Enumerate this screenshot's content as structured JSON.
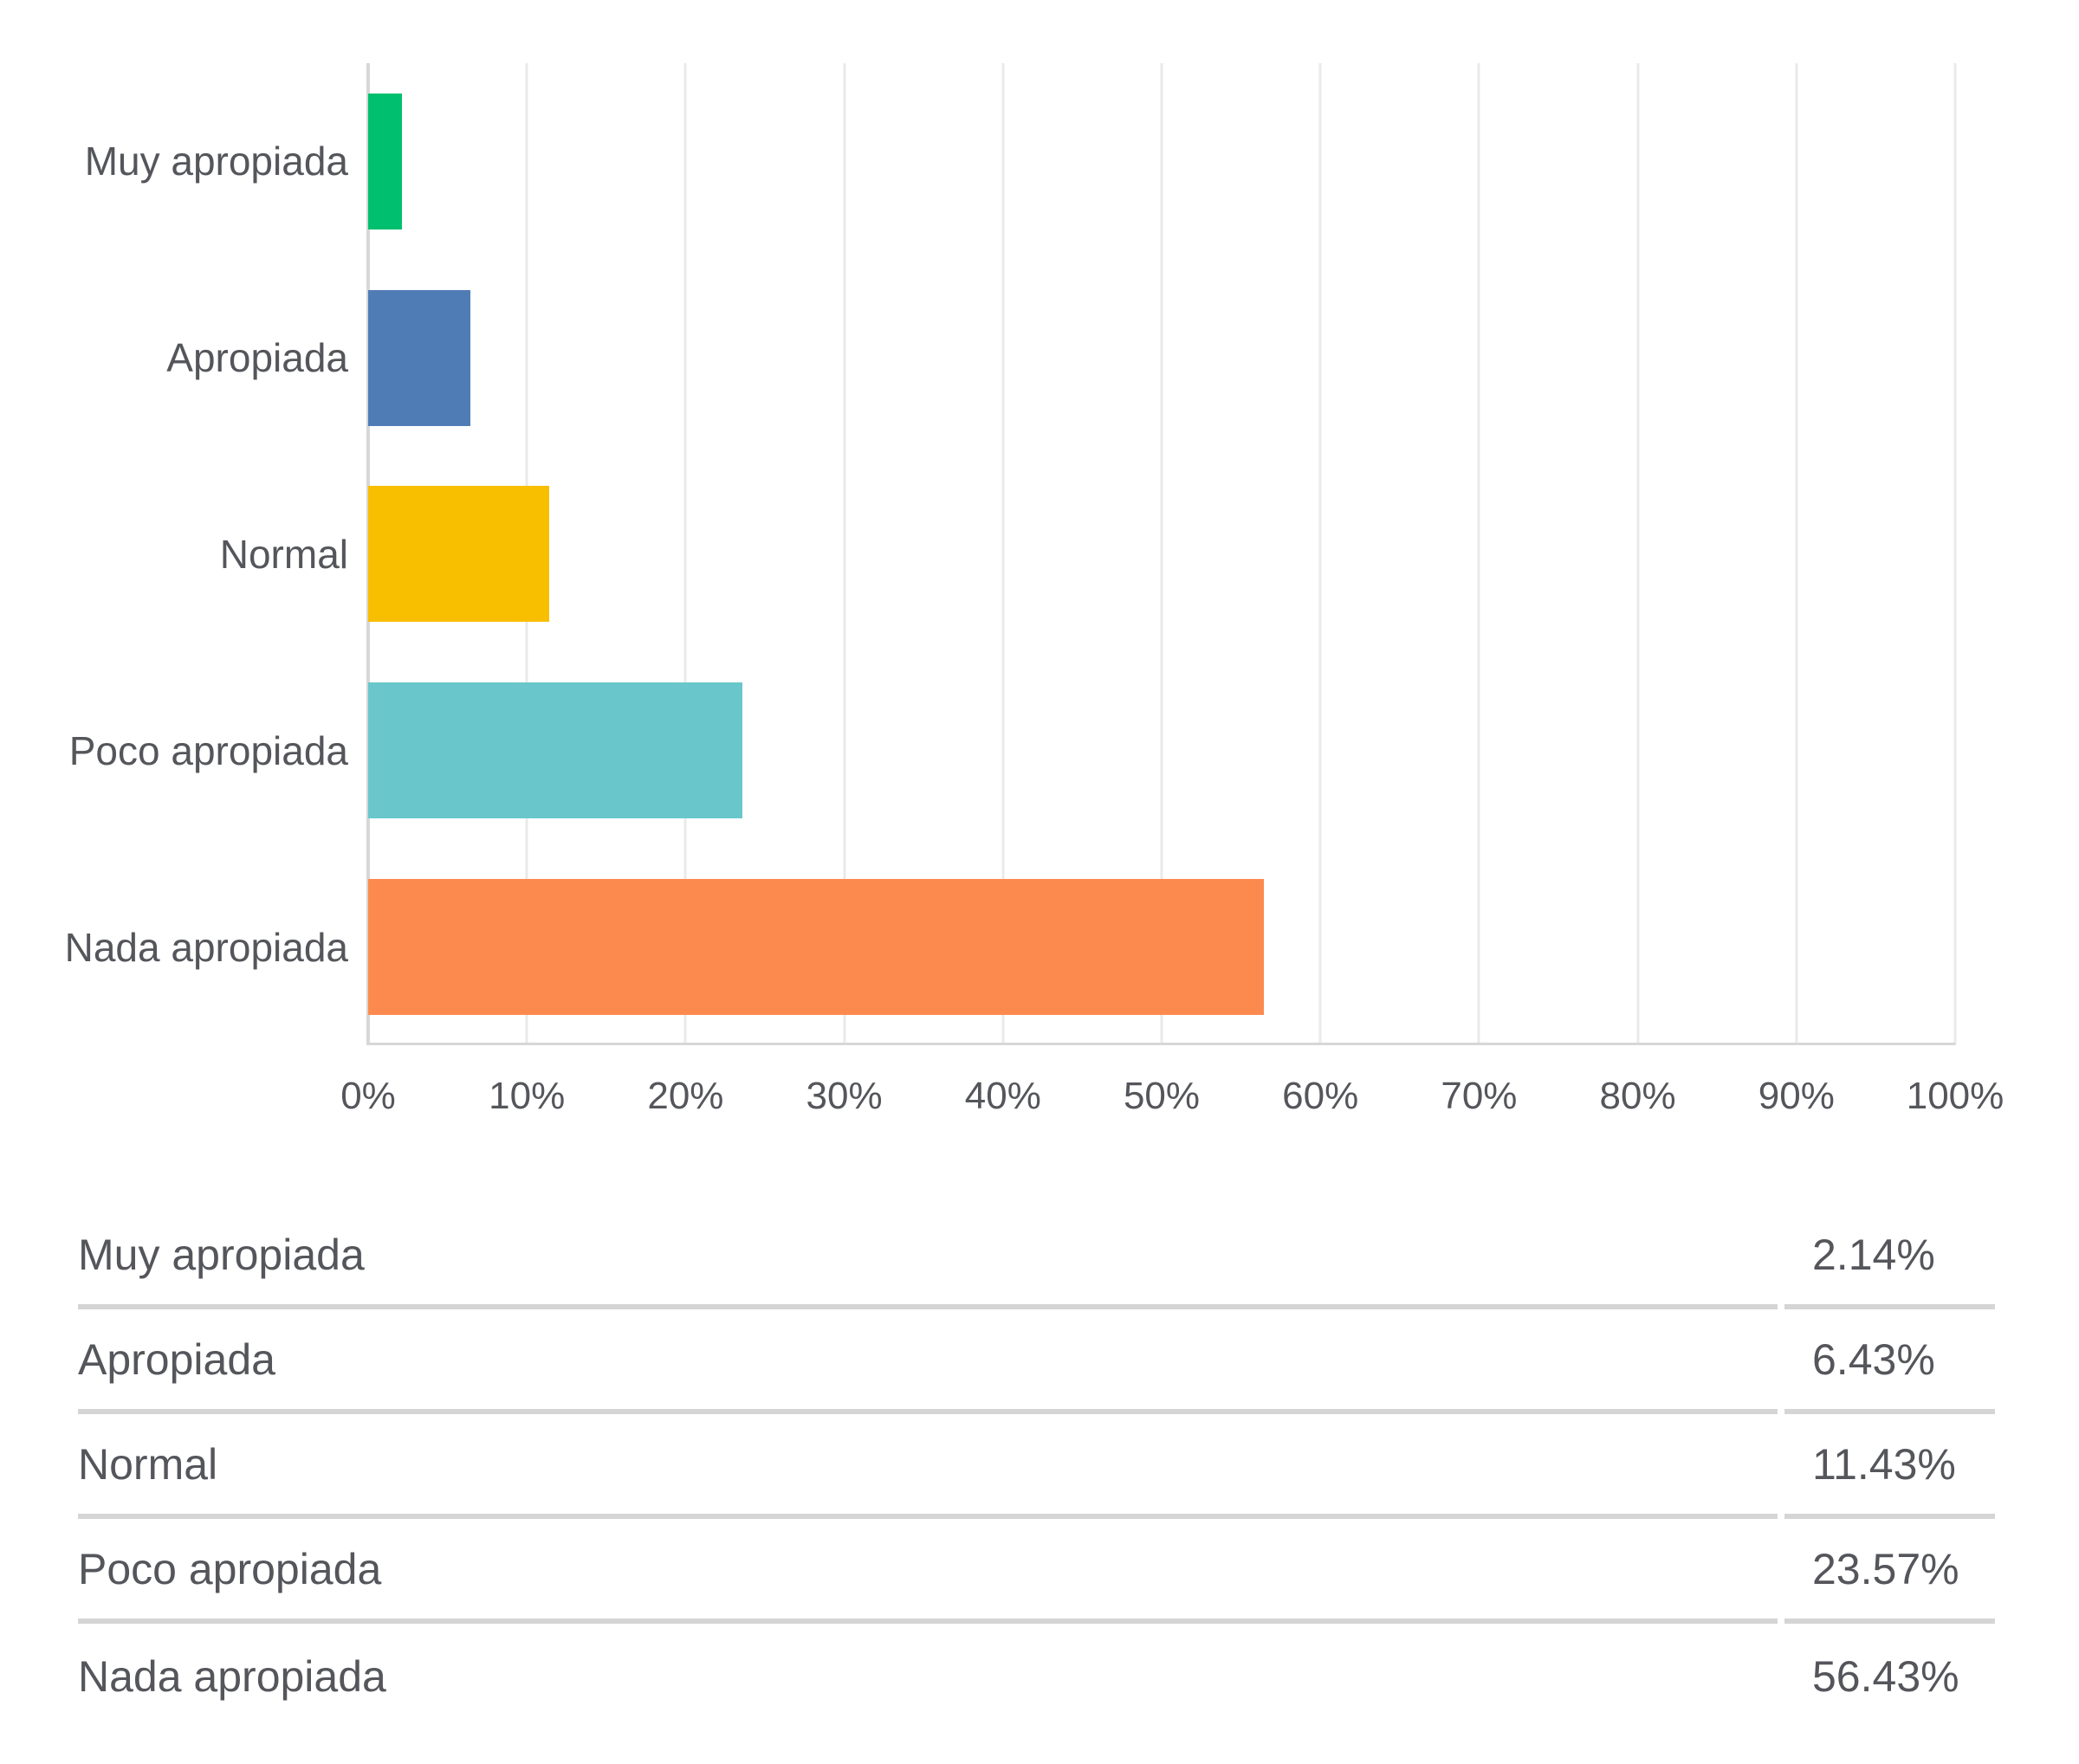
{
  "chart_data": {
    "type": "bar",
    "orientation": "horizontal",
    "title": "",
    "xlabel": "",
    "ylabel": "",
    "categories": [
      "Muy apropiada",
      "Apropiada",
      "Normal",
      "Poco apropiada",
      "Nada apropiada"
    ],
    "values": [
      2.14,
      6.43,
      11.43,
      23.57,
      56.43
    ],
    "bar_colors": [
      "#00BF6F",
      "#507CB6",
      "#F8BE00",
      "#69C7CC",
      "#FC8A4E"
    ],
    "x_ticks": [
      "0%",
      "10%",
      "20%",
      "30%",
      "40%",
      "50%",
      "60%",
      "70%",
      "80%",
      "90%",
      "100%"
    ],
    "xlim": [
      0,
      100
    ],
    "grid": "vertical",
    "legend": "none"
  },
  "table": {
    "rows": [
      {
        "label": "Muy apropiada",
        "value": "2.14%"
      },
      {
        "label": "Apropiada",
        "value": "6.43%"
      },
      {
        "label": "Normal",
        "value": "11.43%"
      },
      {
        "label": "Poco apropiada",
        "value": "23.57%"
      },
      {
        "label": "Nada apropiada",
        "value": "56.43%"
      }
    ]
  },
  "colors": {
    "text": "#54565B",
    "gridline": "#EAEAEA",
    "axis_line": "#D7D7D7",
    "table_divider": "#D5D5D5",
    "background": "#FFFFFF"
  }
}
